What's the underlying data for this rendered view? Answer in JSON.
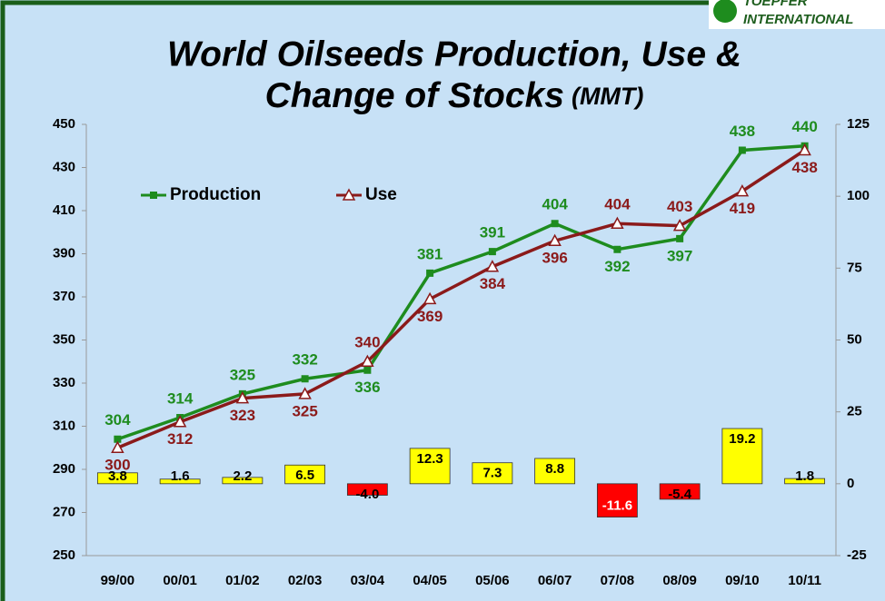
{
  "logo": [
    "TOEPFER",
    "INTERNATIONAL"
  ],
  "chart_data": {
    "type": "combo",
    "title": [
      "World Oilseeds Production, Use &",
      "Change of Stocks"
    ],
    "title_unit": "(MMT)",
    "categories": [
      "99/00",
      "00/01",
      "01/02",
      "02/03",
      "03/04",
      "04/05",
      "05/06",
      "06/07",
      "07/08",
      "08/09",
      "09/10",
      "10/11"
    ],
    "series": [
      {
        "name": "Production",
        "type": "line",
        "marker": "square",
        "color": "#1e8c1e",
        "values": [
          304,
          314,
          325,
          332,
          336,
          381,
          391,
          404,
          392,
          397,
          438,
          440
        ]
      },
      {
        "name": "Use",
        "type": "line",
        "marker": "triangle",
        "color": "#8b1a1a",
        "values": [
          300,
          312,
          323,
          325,
          340,
          369,
          384,
          396,
          404,
          403,
          419,
          438
        ]
      },
      {
        "type": "bar",
        "axis": "y2",
        "colors": {
          "positive": "#ffff00",
          "negative": "#ff0000"
        },
        "values": [
          3.8,
          1.6,
          2.2,
          6.5,
          -4.0,
          12.3,
          7.3,
          8.8,
          -11.6,
          -5.4,
          19.2,
          1.8
        ],
        "value_labels": [
          "3.8",
          "1.6",
          "2.2",
          "6.5",
          "-4.0",
          "12.3",
          "7.3",
          "8.8",
          "-11.6",
          "-5.4",
          "19.2",
          "1.8"
        ]
      }
    ],
    "ylim": [
      250,
      450
    ],
    "yticks": [
      250,
      270,
      290,
      310,
      330,
      350,
      370,
      390,
      410,
      430,
      450
    ],
    "y2lim": [
      -25,
      125
    ],
    "y2ticks": [
      -25,
      0,
      25,
      50,
      75,
      100,
      125
    ],
    "legend": "upper left",
    "grid": false
  }
}
